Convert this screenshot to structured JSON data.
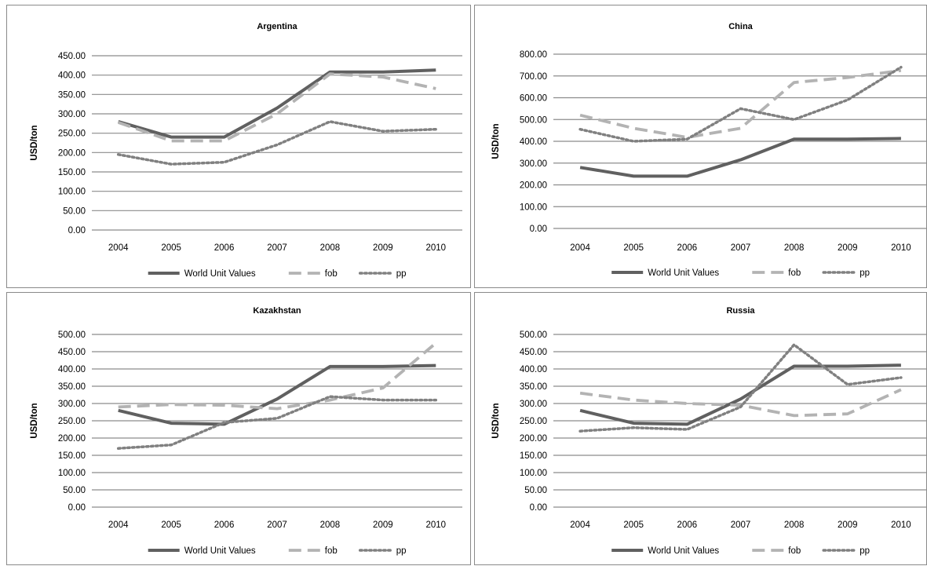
{
  "chart_data": [
    {
      "type": "line",
      "title": "Argentina",
      "ylabel": "USD/ton",
      "ylim": [
        0,
        450
      ],
      "ystep": 50,
      "yticks": [
        "0.00",
        "50.00",
        "100.00",
        "150.00",
        "200.00",
        "250.00",
        "300.00",
        "350.00",
        "400.00",
        "450.00"
      ],
      "categories": [
        "2004",
        "2005",
        "2006",
        "2007",
        "2008",
        "2009",
        "2010"
      ],
      "series": [
        {
          "name": "World Unit Values",
          "values": [
            280,
            240,
            240,
            315,
            408,
            408,
            413
          ]
        },
        {
          "name": "fob",
          "values": [
            278,
            230,
            230,
            300,
            403,
            395,
            365
          ]
        },
        {
          "name": "pp",
          "values": [
            195,
            170,
            175,
            220,
            280,
            255,
            260
          ]
        }
      ],
      "legend": "bottom",
      "grid": true
    },
    {
      "type": "line",
      "title": "China",
      "ylabel": "USD/ton",
      "ylim": [
        0,
        800
      ],
      "ystep": 100,
      "yticks": [
        "0.00",
        "100.00",
        "200.00",
        "300.00",
        "400.00",
        "500.00",
        "600.00",
        "700.00",
        "800.00"
      ],
      "categories": [
        "2004",
        "2005",
        "2006",
        "2007",
        "2008",
        "2009",
        "2010"
      ],
      "series": [
        {
          "name": "World Unit Values",
          "values": [
            280,
            240,
            240,
            315,
            410,
            410,
            413
          ]
        },
        {
          "name": "fob",
          "values": [
            520,
            460,
            418,
            460,
            670,
            693,
            725
          ]
        },
        {
          "name": "pp",
          "values": [
            455,
            400,
            410,
            550,
            500,
            590,
            740
          ]
        }
      ],
      "legend": "bottom",
      "grid": true
    },
    {
      "type": "line",
      "title": "Kazakhstan",
      "ylabel": "USD/ton",
      "ylim": [
        0,
        500
      ],
      "ystep": 50,
      "yticks": [
        "0.00",
        "50.00",
        "100.00",
        "150.00",
        "200.00",
        "250.00",
        "300.00",
        "350.00",
        "400.00",
        "450.00",
        "500.00"
      ],
      "categories": [
        "2004",
        "2005",
        "2006",
        "2007",
        "2008",
        "2009",
        "2010"
      ],
      "series": [
        {
          "name": "World Unit Values",
          "values": [
            280,
            243,
            240,
            313,
            407,
            407,
            410
          ]
        },
        {
          "name": "fob",
          "values": [
            290,
            297,
            295,
            285,
            310,
            345,
            475
          ]
        },
        {
          "name": "pp",
          "values": [
            170,
            180,
            245,
            257,
            320,
            310,
            310
          ]
        }
      ],
      "legend": "bottom",
      "grid": true
    },
    {
      "type": "line",
      "title": "Russia",
      "ylabel": "USD/ton",
      "ylim": [
        0,
        500
      ],
      "ystep": 50,
      "yticks": [
        "0.00",
        "50.00",
        "100.00",
        "150.00",
        "200.00",
        "250.00",
        "300.00",
        "350.00",
        "400.00",
        "450.00",
        "500.00"
      ],
      "categories": [
        "2004",
        "2005",
        "2006",
        "2007",
        "2008",
        "2009",
        "2010"
      ],
      "series": [
        {
          "name": "World Unit Values",
          "values": [
            280,
            243,
            240,
            313,
            408,
            408,
            411
          ]
        },
        {
          "name": "fob",
          "values": [
            330,
            310,
            300,
            295,
            265,
            270,
            340
          ]
        },
        {
          "name": "pp",
          "values": [
            220,
            230,
            225,
            290,
            470,
            355,
            375
          ]
        }
      ],
      "legend": "bottom",
      "grid": true
    }
  ],
  "style": {
    "series_colors": [
      "#606060",
      "#b3b3b3",
      "#808080"
    ],
    "series_dash": [
      "solid",
      "long-dash",
      "dotted"
    ]
  }
}
